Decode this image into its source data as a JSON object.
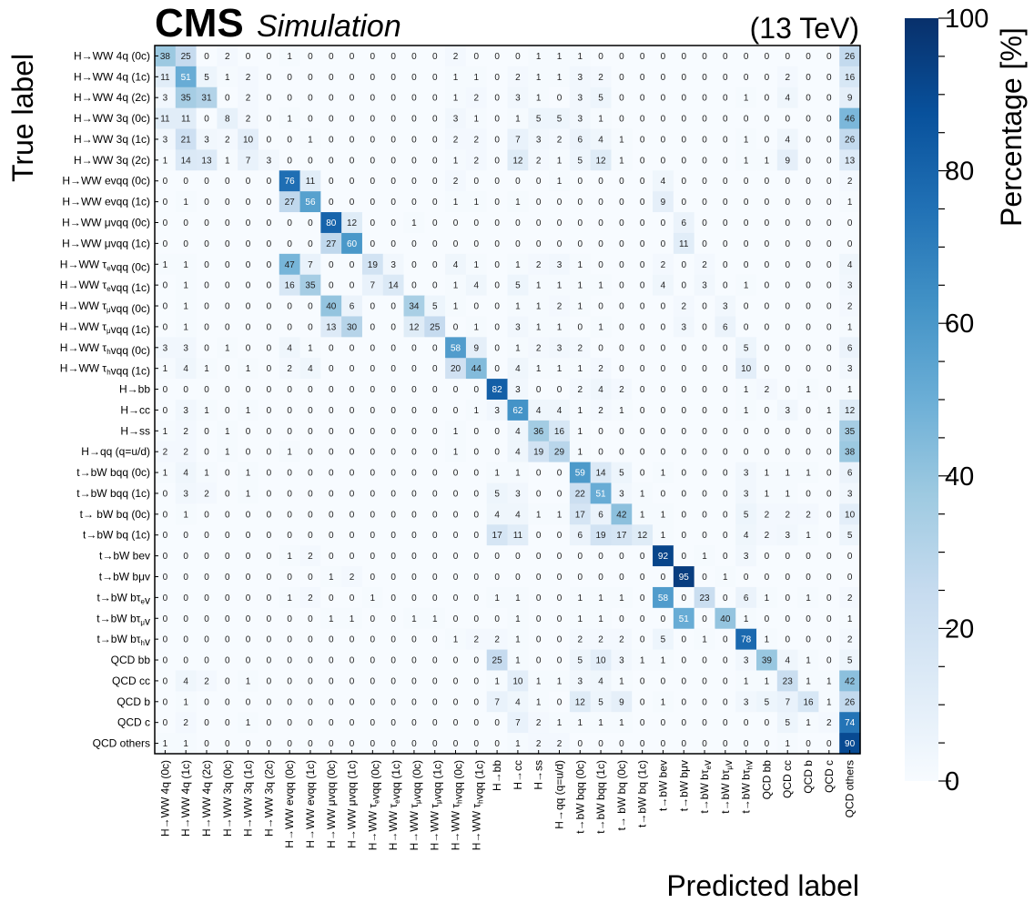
{
  "header": {
    "experiment": "CMS",
    "subtitle": "Simulation",
    "energy": "(13 TeV)"
  },
  "colorbar": {
    "title": "Percentage [%]",
    "ticks": [
      0,
      20,
      40,
      60,
      80,
      100
    ],
    "colormap": "Blues",
    "low_color": "#f7fbff",
    "high_color": "#08306b"
  },
  "chart_data": {
    "type": "heatmap",
    "xlabel": "Predicted label",
    "ylabel": "True label",
    "zlim": [
      0,
      100
    ],
    "labels": [
      "H→WW 4q (0c)",
      "H→WW 4q (1c)",
      "H→WW 4q (2c)",
      "H→WW 3q (0c)",
      "H→WW 3q (1c)",
      "H→WW 3q (2c)",
      "H→WW evqq (0c)",
      "H→WW evqq (1c)",
      "H→WW μvqq (0c)",
      "H→WW μvqq (1c)",
      "H→WW τₑvqq (0c)",
      "H→WW τₑvqq (1c)",
      "H→WW τ_μvqq (0c)",
      "H→WW τ_μvqq (1c)",
      "H→WW τₕvqq (0c)",
      "H→WW τₕvqq (1c)",
      "H→bb",
      "H→cc",
      "H→ss",
      "H→qq (q=u/d)",
      "t→bW bqq (0c)",
      "t→bW bqq (1c)",
      "t→ bW bq (0c)",
      "t→bW bq (1c)",
      "t→bW bev",
      "t→bW bμv",
      "t→bW bτₑv",
      "t→bW bτ_μv",
      "t→bW bτₕv",
      "QCD bb",
      "QCD cc",
      "QCD b",
      "QCD c",
      "QCD others"
    ],
    "x_labels": [
      "H→WW 4q (0c)",
      "H→WW 4q (1c)",
      "H→WW 4q (2c)",
      "H→WW 3q (0c)",
      "H→WW 3q (1c)",
      "H→WW 3q (2c)",
      "H→WW evqq (0c)",
      "H→WW evqq (1c)",
      "H→WW μvqq (0c)",
      "H→WW μvqq (1c)",
      "H→WW τₑvqq (0c)",
      "H→WW τₑvqq (1c)",
      "H→WW τ_μvqq (0c)",
      "H→WW τ_μvqq (1c)",
      "H→WW τₕvqq (0c)",
      "H→WW τₕvqq (1c)",
      "H→bb",
      "H→cc",
      "H→ss",
      "H→qq (q=u/d)",
      "t→bW bqq (0c)",
      "t→bW bqq (1c)",
      "t→ bW bq (0c)",
      "t→bW bq (1c)",
      "t→bW bev",
      "t→bW bμv",
      "t→bW bτₑv",
      "t→bW bτ_μv",
      "t→bW bτₕv",
      "QCD bb",
      "QCD cc",
      "QCD b",
      "QCD c",
      "QCD others"
    ],
    "values": [
      [
        38,
        25,
        0,
        2,
        0,
        0,
        1,
        0,
        0,
        0,
        0,
        0,
        0,
        0,
        2,
        0,
        0,
        0,
        1,
        1,
        1,
        0,
        0,
        0,
        0,
        0,
        0,
        0,
        0,
        0,
        0,
        0,
        0,
        26
      ],
      [
        11,
        51,
        5,
        1,
        2,
        0,
        0,
        0,
        0,
        0,
        0,
        0,
        0,
        0,
        1,
        1,
        0,
        2,
        1,
        1,
        3,
        2,
        0,
        0,
        0,
        0,
        0,
        0,
        0,
        0,
        2,
        0,
        0,
        16
      ],
      [
        3,
        35,
        31,
        0,
        2,
        0,
        0,
        0,
        0,
        0,
        0,
        0,
        0,
        0,
        1,
        2,
        0,
        3,
        1,
        0,
        3,
        5,
        0,
        0,
        0,
        0,
        0,
        0,
        1,
        0,
        4,
        0,
        0,
        9
      ],
      [
        11,
        11,
        0,
        8,
        2,
        0,
        1,
        0,
        0,
        0,
        0,
        0,
        0,
        0,
        3,
        1,
        0,
        1,
        5,
        5,
        3,
        1,
        0,
        0,
        0,
        0,
        0,
        0,
        0,
        0,
        0,
        0,
        0,
        46
      ],
      [
        3,
        21,
        3,
        2,
        10,
        0,
        0,
        1,
        0,
        0,
        0,
        0,
        0,
        0,
        2,
        2,
        0,
        7,
        3,
        2,
        6,
        4,
        1,
        0,
        0,
        0,
        0,
        0,
        1,
        0,
        4,
        0,
        0,
        26
      ],
      [
        1,
        14,
        13,
        1,
        7,
        3,
        0,
        0,
        0,
        0,
        0,
        0,
        0,
        0,
        1,
        2,
        0,
        12,
        2,
        1,
        5,
        12,
        1,
        0,
        0,
        0,
        0,
        0,
        1,
        1,
        9,
        0,
        0,
        13
      ],
      [
        0,
        0,
        0,
        0,
        0,
        0,
        76,
        11,
        0,
        0,
        0,
        0,
        0,
        0,
        2,
        0,
        0,
        0,
        0,
        1,
        0,
        0,
        0,
        0,
        4,
        0,
        0,
        0,
        0,
        0,
        0,
        0,
        0,
        2
      ],
      [
        0,
        1,
        0,
        0,
        0,
        0,
        27,
        56,
        0,
        0,
        0,
        0,
        0,
        0,
        1,
        1,
        0,
        1,
        0,
        0,
        0,
        0,
        0,
        0,
        9,
        0,
        0,
        0,
        0,
        0,
        0,
        0,
        0,
        1
      ],
      [
        0,
        0,
        0,
        0,
        0,
        0,
        0,
        0,
        80,
        12,
        0,
        0,
        1,
        0,
        0,
        0,
        0,
        0,
        0,
        0,
        0,
        0,
        0,
        0,
        0,
        6,
        0,
        0,
        0,
        0,
        0,
        0,
        0,
        0
      ],
      [
        0,
        0,
        0,
        0,
        0,
        0,
        0,
        0,
        27,
        60,
        0,
        0,
        0,
        0,
        0,
        0,
        0,
        0,
        0,
        0,
        0,
        0,
        0,
        0,
        0,
        11,
        0,
        0,
        0,
        0,
        0,
        0,
        0,
        0
      ],
      [
        1,
        1,
        0,
        0,
        0,
        0,
        47,
        7,
        0,
        0,
        19,
        3,
        0,
        0,
        4,
        1,
        0,
        1,
        2,
        3,
        1,
        0,
        0,
        0,
        2,
        0,
        2,
        0,
        0,
        0,
        0,
        0,
        0,
        4
      ],
      [
        0,
        1,
        0,
        0,
        0,
        0,
        16,
        35,
        0,
        0,
        7,
        14,
        0,
        0,
        1,
        4,
        0,
        5,
        1,
        1,
        1,
        1,
        0,
        0,
        4,
        0,
        3,
        0,
        1,
        0,
        0,
        0,
        0,
        3
      ],
      [
        0,
        1,
        0,
        0,
        0,
        0,
        0,
        0,
        40,
        6,
        0,
        0,
        34,
        5,
        1,
        0,
        0,
        1,
        1,
        2,
        1,
        0,
        0,
        0,
        0,
        2,
        0,
        3,
        0,
        0,
        0,
        0,
        0,
        2
      ],
      [
        0,
        1,
        0,
        0,
        0,
        0,
        0,
        0,
        13,
        30,
        0,
        0,
        12,
        25,
        0,
        1,
        0,
        3,
        1,
        1,
        0,
        1,
        0,
        0,
        0,
        3,
        0,
        6,
        0,
        0,
        0,
        0,
        0,
        1
      ],
      [
        3,
        3,
        0,
        1,
        0,
        0,
        4,
        1,
        0,
        0,
        0,
        0,
        0,
        0,
        58,
        9,
        0,
        1,
        2,
        3,
        2,
        0,
        0,
        0,
        0,
        0,
        0,
        0,
        5,
        0,
        0,
        0,
        0,
        6
      ],
      [
        1,
        4,
        1,
        0,
        1,
        0,
        2,
        4,
        0,
        0,
        0,
        0,
        0,
        0,
        20,
        44,
        0,
        4,
        1,
        1,
        1,
        2,
        0,
        0,
        0,
        0,
        0,
        0,
        10,
        0,
        0,
        0,
        0,
        3
      ],
      [
        0,
        0,
        0,
        0,
        0,
        0,
        0,
        0,
        0,
        0,
        0,
        0,
        0,
        0,
        0,
        0,
        82,
        3,
        0,
        0,
        2,
        4,
        2,
        0,
        0,
        0,
        0,
        0,
        1,
        2,
        0,
        1,
        0,
        1
      ],
      [
        0,
        3,
        1,
        0,
        1,
        0,
        0,
        0,
        0,
        0,
        0,
        0,
        0,
        0,
        0,
        1,
        3,
        62,
        4,
        4,
        1,
        2,
        1,
        0,
        0,
        0,
        0,
        0,
        1,
        0,
        3,
        0,
        1,
        12
      ],
      [
        1,
        2,
        0,
        1,
        0,
        0,
        0,
        0,
        0,
        0,
        0,
        0,
        0,
        0,
        1,
        0,
        0,
        4,
        36,
        16,
        1,
        0,
        0,
        0,
        0,
        0,
        0,
        0,
        0,
        0,
        0,
        0,
        0,
        35
      ],
      [
        2,
        2,
        0,
        1,
        0,
        0,
        1,
        0,
        0,
        0,
        0,
        0,
        0,
        0,
        1,
        0,
        0,
        4,
        19,
        29,
        1,
        0,
        0,
        0,
        0,
        0,
        0,
        0,
        0,
        0,
        0,
        0,
        0,
        38
      ],
      [
        1,
        4,
        1,
        0,
        1,
        0,
        0,
        0,
        0,
        0,
        0,
        0,
        0,
        0,
        0,
        0,
        1,
        1,
        0,
        0,
        59,
        14,
        5,
        0,
        1,
        0,
        0,
        0,
        3,
        1,
        1,
        1,
        0,
        6
      ],
      [
        0,
        3,
        2,
        0,
        1,
        0,
        0,
        0,
        0,
        0,
        0,
        0,
        0,
        0,
        0,
        0,
        5,
        3,
        0,
        0,
        22,
        51,
        3,
        1,
        0,
        0,
        0,
        0,
        3,
        1,
        1,
        0,
        0,
        3
      ],
      [
        0,
        1,
        0,
        0,
        0,
        0,
        0,
        0,
        0,
        0,
        0,
        0,
        0,
        0,
        0,
        0,
        4,
        4,
        1,
        1,
        17,
        6,
        42,
        1,
        1,
        0,
        0,
        0,
        5,
        2,
        2,
        2,
        0,
        10
      ],
      [
        0,
        0,
        0,
        0,
        0,
        0,
        0,
        0,
        0,
        0,
        0,
        0,
        0,
        0,
        0,
        0,
        17,
        11,
        0,
        0,
        6,
        19,
        17,
        12,
        1,
        0,
        0,
        0,
        4,
        2,
        3,
        1,
        0,
        5
      ],
      [
        0,
        0,
        0,
        0,
        0,
        0,
        1,
        2,
        0,
        0,
        0,
        0,
        0,
        0,
        0,
        0,
        0,
        0,
        0,
        0,
        0,
        0,
        0,
        0,
        92,
        0,
        1,
        0,
        3,
        0,
        0,
        0,
        0,
        0
      ],
      [
        0,
        0,
        0,
        0,
        0,
        0,
        0,
        0,
        1,
        2,
        0,
        0,
        0,
        0,
        0,
        0,
        0,
        0,
        0,
        0,
        0,
        0,
        0,
        0,
        0,
        95,
        0,
        1,
        0,
        0,
        0,
        0,
        0,
        0
      ],
      [
        0,
        0,
        0,
        0,
        0,
        0,
        1,
        2,
        0,
        0,
        1,
        0,
        0,
        0,
        0,
        0,
        1,
        1,
        0,
        0,
        1,
        1,
        1,
        0,
        58,
        0,
        23,
        0,
        6,
        1,
        0,
        1,
        0,
        2
      ],
      [
        0,
        0,
        0,
        0,
        0,
        0,
        0,
        0,
        1,
        1,
        0,
        0,
        1,
        1,
        0,
        0,
        0,
        1,
        0,
        0,
        1,
        1,
        0,
        0,
        0,
        51,
        0,
        40,
        1,
        0,
        0,
        0,
        0,
        1
      ],
      [
        0,
        0,
        0,
        0,
        0,
        0,
        0,
        0,
        0,
        0,
        0,
        0,
        0,
        0,
        1,
        2,
        2,
        1,
        0,
        0,
        2,
        2,
        2,
        0,
        5,
        0,
        1,
        0,
        78,
        1,
        0,
        0,
        0,
        2
      ],
      [
        0,
        0,
        0,
        0,
        0,
        0,
        0,
        0,
        0,
        0,
        0,
        0,
        0,
        0,
        0,
        0,
        25,
        1,
        0,
        0,
        5,
        10,
        3,
        1,
        1,
        0,
        0,
        0,
        3,
        39,
        4,
        1,
        0,
        5
      ],
      [
        0,
        4,
        2,
        0,
        1,
        0,
        0,
        0,
        0,
        0,
        0,
        0,
        0,
        0,
        0,
        0,
        1,
        10,
        1,
        1,
        3,
        4,
        1,
        0,
        0,
        0,
        0,
        0,
        1,
        1,
        23,
        1,
        1,
        42
      ],
      [
        0,
        1,
        0,
        0,
        0,
        0,
        0,
        0,
        0,
        0,
        0,
        0,
        0,
        0,
        0,
        0,
        7,
        4,
        1,
        0,
        12,
        5,
        9,
        0,
        1,
        0,
        0,
        0,
        3,
        5,
        7,
        16,
        1,
        26
      ],
      [
        0,
        2,
        0,
        0,
        1,
        0,
        0,
        0,
        0,
        0,
        0,
        0,
        0,
        0,
        0,
        0,
        0,
        7,
        2,
        1,
        1,
        1,
        1,
        0,
        0,
        0,
        0,
        0,
        0,
        0,
        5,
        1,
        2,
        74
      ],
      [
        1,
        1,
        0,
        0,
        0,
        0,
        0,
        0,
        0,
        0,
        0,
        0,
        0,
        0,
        0,
        0,
        0,
        1,
        2,
        2,
        0,
        0,
        0,
        0,
        0,
        0,
        0,
        0,
        0,
        0,
        1,
        0,
        0,
        90
      ]
    ]
  }
}
